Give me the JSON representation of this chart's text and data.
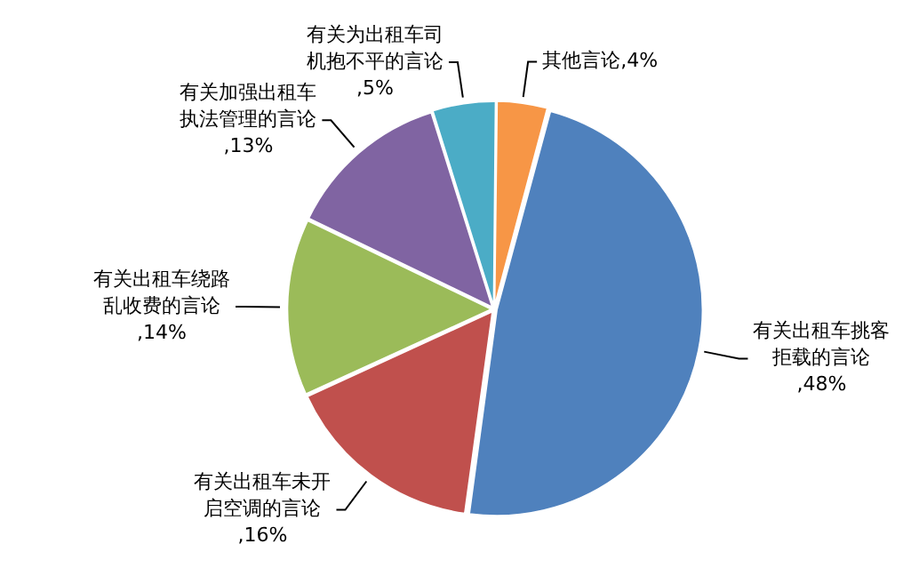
{
  "chart_data": {
    "type": "pie",
    "categories": [
      "有关出租车挑客拒载的言论",
      "有关出租车未开启空调的言论",
      "有关出租车绕路乱收费的言论",
      "有关加强出租车执法管理的言论",
      "有关为出租车司机抱不平的言论",
      "其他言论"
    ],
    "values": [
      48,
      16,
      14,
      13,
      5,
      4
    ],
    "colors": [
      "#4f81bd",
      "#c0504d",
      "#9bbb59",
      "#8064a2",
      "#4bacc6",
      "#f79646"
    ],
    "value_labels": [
      ",48%",
      ",16%",
      ",14%",
      ",13%",
      ",5%",
      ",4%"
    ],
    "legend": false
  }
}
